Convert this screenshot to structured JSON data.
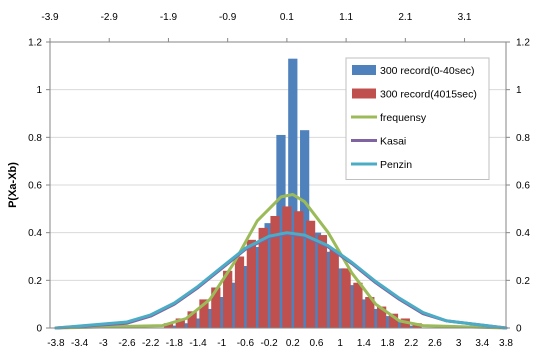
{
  "chart_data": {
    "type": "bar",
    "ylabel": "P(Xa-Xb)",
    "ylim": [
      0,
      1.2
    ],
    "y_ticks": [
      "0",
      "0.2",
      "0.4",
      "0.6",
      "0.8",
      "1",
      "1.2"
    ],
    "y_ticks_right": [
      "0",
      "0.2",
      "0.4",
      "0.6",
      "0.8",
      "1",
      "1.2"
    ],
    "x_ticks_top": [
      "-3.9",
      "-2.9",
      "-1.9",
      "-0.9",
      "0.1",
      "1.1",
      "2.1",
      "3.1"
    ],
    "x_ticks_bottom": [
      "-3.8",
      "-3.4",
      "-3",
      "-2.6",
      "-2.2",
      "-1.8",
      "-1.4",
      "-1",
      "-0.6",
      "-0.2",
      "0.2",
      "0.6",
      "1",
      "1.4",
      "1.8",
      "2.2",
      "2.6",
      "3",
      "3.4",
      "3.8"
    ],
    "xlim": [
      -3.9,
      3.8
    ],
    "legend_position": "top-right",
    "colors": {
      "series1": "#4f81bd",
      "series2": "#c0504d",
      "frequensy": "#9bbb59",
      "kasai": "#8064a2",
      "penzin": "#4bacc6"
    },
    "series": [
      {
        "name": "300 record(0-40sec)",
        "kind": "bar",
        "points": [
          [
            -1.8,
            0.01
          ],
          [
            -1.6,
            0.02
          ],
          [
            -1.4,
            0.04
          ],
          [
            -1.2,
            0.08
          ],
          [
            -1.0,
            0.13
          ],
          [
            -0.8,
            0.19
          ],
          [
            -0.6,
            0.26
          ],
          [
            -0.4,
            0.34
          ],
          [
            -0.2,
            0.44
          ],
          [
            0.0,
            0.81
          ],
          [
            0.2,
            1.13
          ],
          [
            0.4,
            0.83
          ],
          [
            0.6,
            0.4
          ],
          [
            0.8,
            0.32
          ],
          [
            1.0,
            0.25
          ],
          [
            1.2,
            0.18
          ],
          [
            1.4,
            0.12
          ],
          [
            1.6,
            0.08
          ],
          [
            1.8,
            0.05
          ],
          [
            2.0,
            0.03
          ],
          [
            2.2,
            0.01
          ]
        ]
      },
      {
        "name": "300 record(4015sec)",
        "kind": "bar",
        "points": [
          [
            -1.9,
            0.02
          ],
          [
            -1.7,
            0.04
          ],
          [
            -1.5,
            0.07
          ],
          [
            -1.3,
            0.12
          ],
          [
            -1.1,
            0.17
          ],
          [
            -0.9,
            0.24
          ],
          [
            -0.7,
            0.3
          ],
          [
            -0.5,
            0.37
          ],
          [
            -0.3,
            0.42
          ],
          [
            -0.1,
            0.47
          ],
          [
            0.1,
            0.51
          ],
          [
            0.3,
            0.49
          ],
          [
            0.5,
            0.45
          ],
          [
            0.7,
            0.39
          ],
          [
            0.9,
            0.33
          ],
          [
            1.1,
            0.25
          ],
          [
            1.3,
            0.19
          ],
          [
            1.5,
            0.13
          ],
          [
            1.7,
            0.09
          ],
          [
            1.9,
            0.06
          ],
          [
            2.1,
            0.04
          ],
          [
            2.3,
            0.02
          ]
        ]
      },
      {
        "name": "frequensy",
        "kind": "line",
        "points": [
          [
            -3.8,
            0.0
          ],
          [
            -2.0,
            0.01
          ],
          [
            -1.6,
            0.04
          ],
          [
            -1.2,
            0.12
          ],
          [
            -0.8,
            0.27
          ],
          [
            -0.4,
            0.45
          ],
          [
            0.0,
            0.55
          ],
          [
            0.2,
            0.56
          ],
          [
            0.4,
            0.53
          ],
          [
            0.8,
            0.4
          ],
          [
            1.2,
            0.23
          ],
          [
            1.6,
            0.1
          ],
          [
            2.0,
            0.03
          ],
          [
            2.4,
            0.01
          ],
          [
            3.8,
            0.0
          ]
        ]
      },
      {
        "name": "Kasai",
        "kind": "line",
        "points": [
          [
            -3.8,
            0.0
          ],
          [
            -2.6,
            0.02
          ],
          [
            -2.2,
            0.05
          ],
          [
            -1.8,
            0.1
          ],
          [
            -1.4,
            0.17
          ],
          [
            -1.0,
            0.25
          ],
          [
            -0.6,
            0.33
          ],
          [
            -0.2,
            0.38
          ],
          [
            0.1,
            0.395
          ],
          [
            0.4,
            0.385
          ],
          [
            0.8,
            0.34
          ],
          [
            1.2,
            0.27
          ],
          [
            1.6,
            0.19
          ],
          [
            2.0,
            0.12
          ],
          [
            2.4,
            0.06
          ],
          [
            2.8,
            0.03
          ],
          [
            3.8,
            0.0
          ]
        ]
      },
      {
        "name": "Penzin",
        "kind": "line",
        "points": [
          [
            -3.8,
            0.0
          ],
          [
            -2.6,
            0.025
          ],
          [
            -2.2,
            0.055
          ],
          [
            -1.8,
            0.105
          ],
          [
            -1.4,
            0.175
          ],
          [
            -1.0,
            0.255
          ],
          [
            -0.6,
            0.335
          ],
          [
            -0.2,
            0.385
          ],
          [
            0.1,
            0.4
          ],
          [
            0.4,
            0.39
          ],
          [
            0.8,
            0.345
          ],
          [
            1.2,
            0.275
          ],
          [
            1.6,
            0.195
          ],
          [
            2.0,
            0.125
          ],
          [
            2.4,
            0.065
          ],
          [
            2.8,
            0.03
          ],
          [
            3.8,
            0.0
          ]
        ]
      }
    ]
  }
}
